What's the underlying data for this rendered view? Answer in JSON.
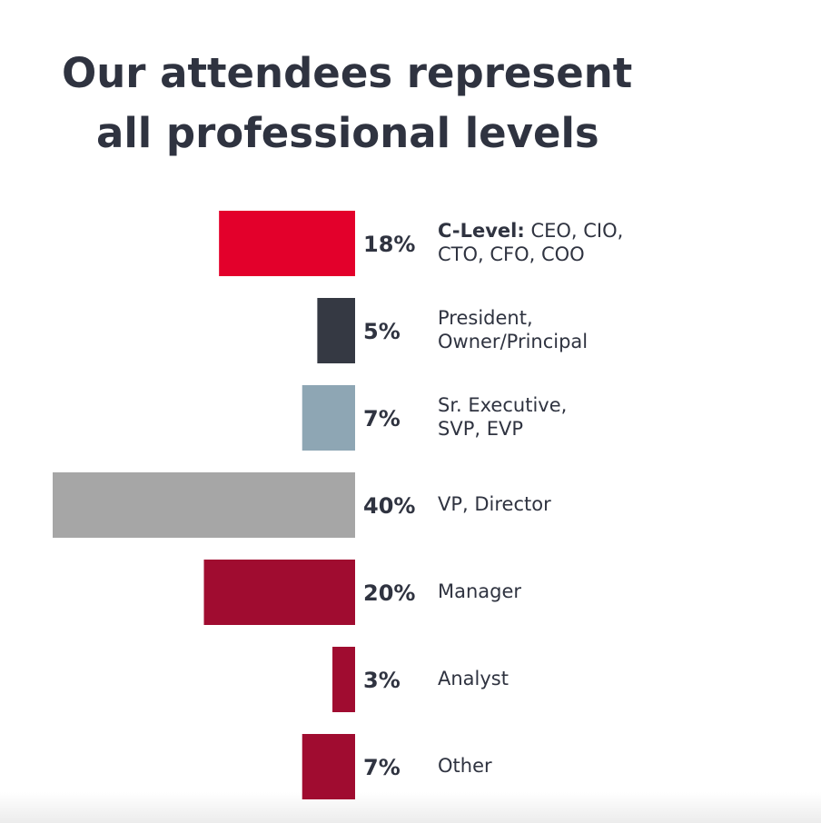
{
  "chart_data": {
    "type": "bar",
    "orientation": "horizontal-left",
    "title": [
      "Our attendees represent",
      "all professional levels"
    ],
    "categories": [
      [
        [
          "C-Level:",
          " CEO, CIO,"
        ],
        "CTO, CFO, COO"
      ],
      [
        "President,",
        "Owner/Principal"
      ],
      [
        "Sr. Executive,",
        "SVP, EVP"
      ],
      [
        "VP, Director"
      ],
      [
        "Manager"
      ],
      [
        "Analyst"
      ],
      [
        "Other"
      ]
    ],
    "values": [
      18,
      5,
      7,
      40,
      20,
      3,
      7
    ],
    "value_labels": [
      "18%",
      "5%",
      "7%",
      "40%",
      "20%",
      "3%",
      "7%"
    ],
    "colors": [
      "#e3002b",
      "#353943",
      "#8ea6b4",
      "#a6a6a6",
      "#a00c30",
      "#a00c30",
      "#a00c30"
    ],
    "xlim": [
      0,
      40
    ]
  }
}
